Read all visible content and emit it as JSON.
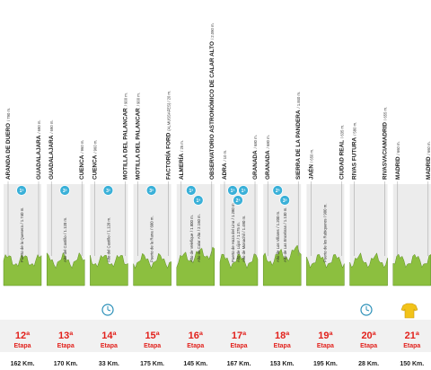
{
  "stages": [
    {
      "number": "12ª",
      "label": "Etapa",
      "distance": "162 Km.",
      "towns": [
        {
          "name": "ARANDA DE DUERO",
          "alt": "/ 790 m."
        },
        {
          "name": "GUADALAJARA",
          "alt": "/ 690 m."
        }
      ],
      "climbs": [
        {
          "name": "Puerto de la Quesera",
          "alt": "/ 1.740 m.",
          "category": "1ª"
        }
      ]
    },
    {
      "number": "13ª",
      "label": "Etapa",
      "distance": "170 Km.",
      "towns": [
        {
          "name": "GUADALAJARA",
          "alt": "/ 690 m."
        },
        {
          "name": "CUENCA",
          "alt": "/ 960 m."
        }
      ],
      "climbs": [
        {
          "name": "Alto del Castillo",
          "alt": "/ 1.120 m.",
          "category": "3ª"
        }
      ]
    },
    {
      "number": "14ª",
      "label": "Etapa",
      "distance": "33 Km.",
      "towns": [
        {
          "name": "CUENCA",
          "alt": "/ 960 m."
        },
        {
          "name": "MOTILLA DEL PALANCAR",
          "alt": "/ 900 m."
        }
      ],
      "climbs": [
        {
          "name": "Alto del Castillo",
          "alt": "/ 1.120 m.",
          "category": "3ª"
        }
      ]
    },
    {
      "number": "15ª",
      "label": "Etapa",
      "distance": "175 Km.",
      "towns": [
        {
          "name": "MOTILLA DEL PALANCAR",
          "alt": "/ 900 m."
        },
        {
          "name": "FACTORÍA FORD",
          "alt": "(ALMUSSAFES) / 20 m."
        }
      ],
      "climbs": [
        {
          "name": "Puerto de la Rana",
          "alt": "/ 600 m.",
          "category": "3ª"
        }
      ]
    },
    {
      "number": "16ª",
      "label": "Etapa",
      "distance": "145 Km.",
      "towns": [
        {
          "name": "ALMERÍA",
          "alt": "/ 25 m."
        },
        {
          "name": "OBSERVATORIO ASTRONÓMICO DE CALAR ALTO",
          "alt": "/ 2.090 m."
        }
      ],
      "climbs": [
        {
          "name": "Alto de Velefique",
          "alt": "/ 1.800 m.",
          "category": "1ª"
        },
        {
          "name": "Alto de Calar Alto",
          "alt": "/ 2.160 m.",
          "category": "1ª"
        }
      ]
    },
    {
      "number": "17ª",
      "label": "Etapa",
      "distance": "167 Km.",
      "towns": [
        {
          "name": "ADRA",
          "alt": "/ 10 m."
        },
        {
          "name": "GRANADA",
          "alt": "/ 680 m."
        }
      ],
      "climbs": [
        {
          "name": "Puerto de Haza del Lino",
          "alt": "/ 1.280 m.",
          "category": "1ª"
        },
        {
          "name": "Alto de Lújar",
          "alt": "/ 1.275 m.",
          "category": "2ª"
        },
        {
          "name": "Alto de Monachil",
          "alt": "/ 1.490 m.",
          "category": "1ª"
        }
      ]
    },
    {
      "number": "18ª",
      "label": "Etapa",
      "distance": "153 Km.",
      "towns": [
        {
          "name": "GRANADA",
          "alt": "/ 680 m."
        },
        {
          "name": "SIERRA DE LA PANDERA",
          "alt": "/ 1.840 m."
        }
      ],
      "climbs": [
        {
          "name": "Alto de Los Villares",
          "alt": "/ 1.200 m.",
          "category": "2ª"
        },
        {
          "name": "Alto de Las Encebras",
          "alt": "/ 1.130 m.",
          "category": "3ª"
        }
      ]
    },
    {
      "number": "19ª",
      "label": "Etapa",
      "distance": "195 Km.",
      "towns": [
        {
          "name": "JAÉN",
          "alt": "/ 650 m."
        },
        {
          "name": "CIUDAD REAL",
          "alt": "/ 635 m."
        }
      ],
      "climbs": [
        {
          "name": "Puerto de los Rabiqueros",
          "alt": "/ 900 m."
        }
      ]
    },
    {
      "number": "20ª",
      "label": "Etapa",
      "distance": "28 Km.",
      "towns": [
        {
          "name": "RIVAS FUTURA",
          "alt": "/ 580 m."
        },
        {
          "name": "RIVASVACIAMADRID",
          "alt": "/ 655 m."
        }
      ],
      "climbs": []
    },
    {
      "number": "21ª",
      "label": "Etapa",
      "distance": "150 Km.",
      "towns": [
        {
          "name": "MADRID",
          "alt": "/ 660 m."
        },
        {
          "name": "MADRID",
          "alt": "/ 660 m."
        }
      ],
      "climbs": []
    }
  ]
}
